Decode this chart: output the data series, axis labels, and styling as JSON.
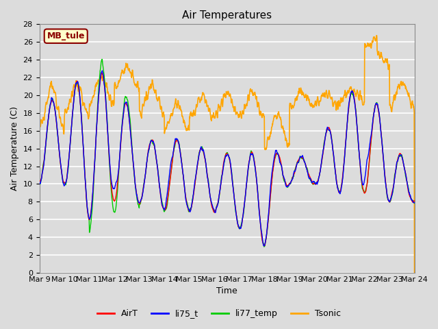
{
  "title": "Air Temperatures",
  "ylabel": "Air Temperature (C)",
  "xlabel": "Time",
  "annotation_text": "MB_tule",
  "annotation_color": "#8B0000",
  "annotation_bg": "#FFFFCC",
  "annotation_border": "#8B0000",
  "ylim": [
    0,
    28
  ],
  "yticks": [
    0,
    2,
    4,
    6,
    8,
    10,
    12,
    14,
    16,
    18,
    20,
    22,
    24,
    26,
    28
  ],
  "xtick_labels": [
    "Mar 9",
    "Mar 10",
    "Mar 11",
    "Mar 12",
    "Mar 13",
    "Mar 14",
    "Mar 15",
    "Mar 16",
    "Mar 17",
    "Mar 18",
    "Mar 19",
    "Mar 20",
    "Mar 21",
    "Mar 22",
    "Mar 23",
    "Mar 24"
  ],
  "line_colors": {
    "AirT": "#FF0000",
    "li75_t": "#0000FF",
    "li77_temp": "#00CC00",
    "Tsonic": "#FFA500"
  },
  "line_widths": {
    "AirT": 1.0,
    "li75_t": 1.0,
    "li77_temp": 1.0,
    "Tsonic": 1.2
  },
  "bg_color": "#DCDCDC",
  "plot_bg_color": "#DCDCDC",
  "grid_color": "#FFFFFF",
  "title_fontsize": 11,
  "axis_fontsize": 9,
  "tick_fontsize": 8
}
